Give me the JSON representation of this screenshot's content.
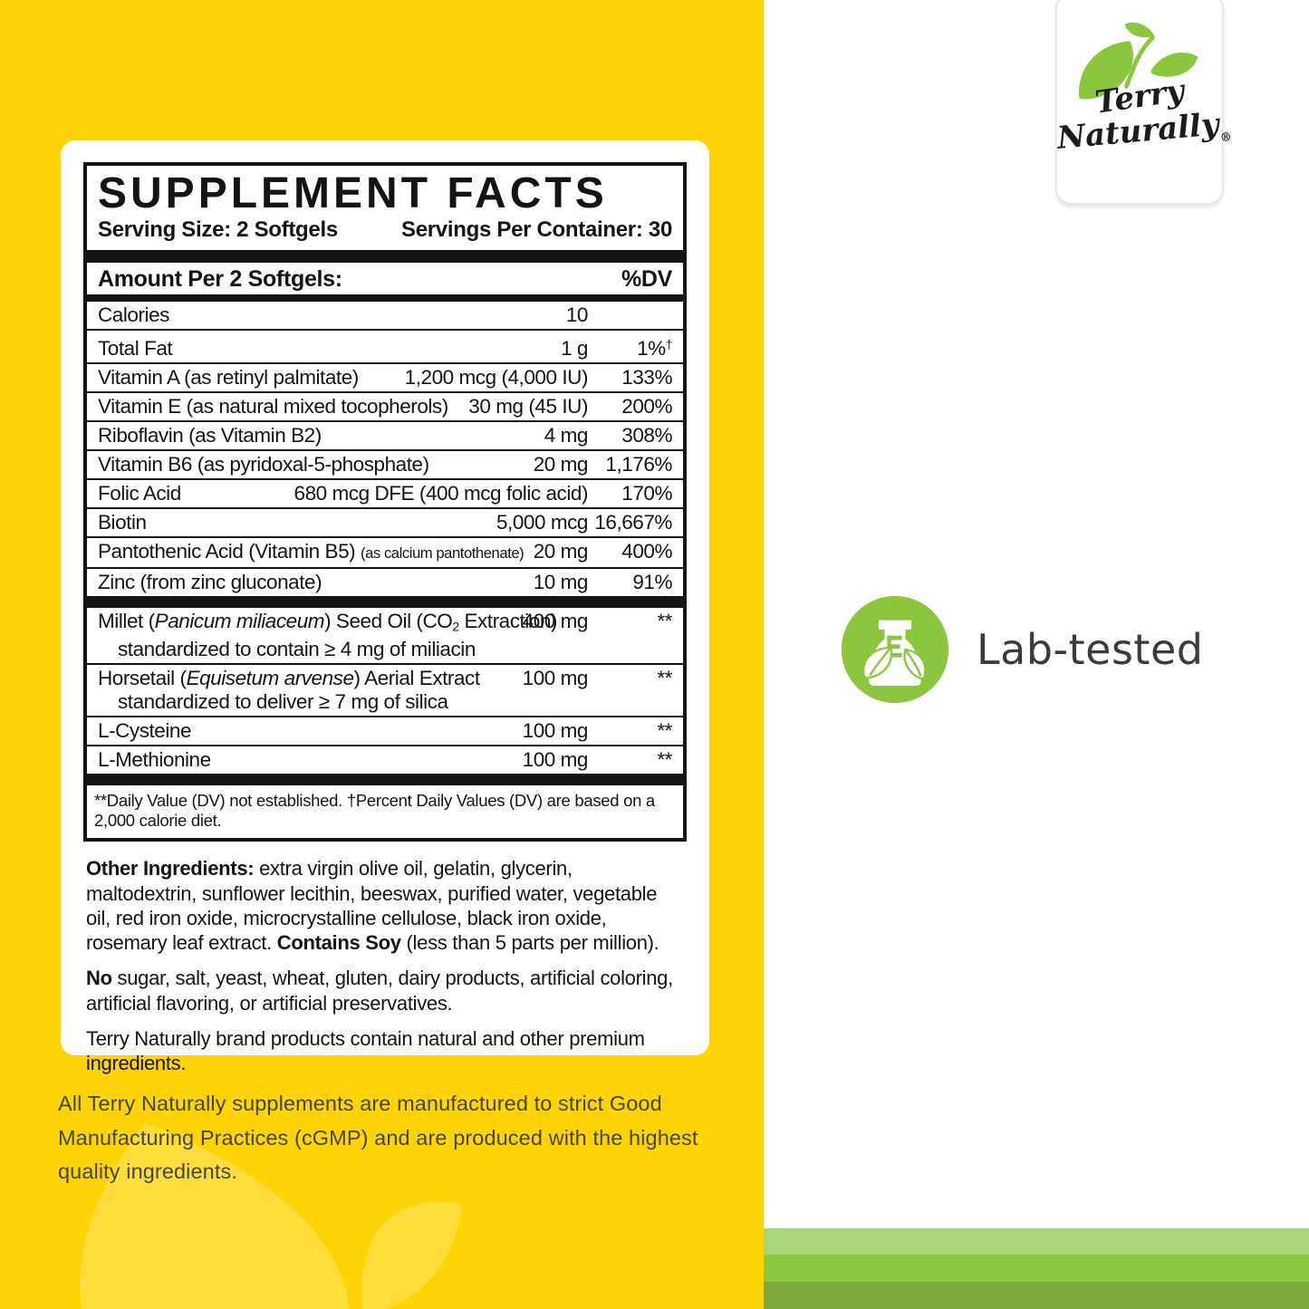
{
  "colors": {
    "yellow": "#FFD405",
    "label_ink": "#141414",
    "brand_green": "#8CC63F",
    "stripe_light": "#A9D478",
    "stripe_mid": "#8DC63F",
    "stripe_dark": "#7EA83C",
    "bottom_note_text": "#474738",
    "badge_text": "#3B3B3B"
  },
  "facts": {
    "title": "SUPPLEMENT FACTS",
    "serving_size": "Serving Size: 2 Softgels",
    "servings_per_container": "Servings Per Container: 30",
    "amount_header": "Amount Per 2 Softgels:",
    "dv_header": "%DV",
    "rows": [
      {
        "name": "Calories",
        "amount": "10",
        "dv": ""
      },
      {
        "name": "Total Fat",
        "amount": "1 g",
        "dv": [
          {
            "t": "1%"
          },
          {
            "t": "†",
            "sup": true
          }
        ]
      },
      {
        "name": "Vitamin A (as retinyl palmitate)",
        "amount": "1,200 mcg (4,000 IU)",
        "dv": "133%"
      },
      {
        "name": "Vitamin E (as natural mixed tocopherols)",
        "amount": "30 mg (45 IU)",
        "dv": "200%"
      },
      {
        "name": "Riboflavin (as Vitamin B2)",
        "amount": "4 mg",
        "dv": "308%"
      },
      {
        "name": "Vitamin B6 (as pyridoxal-5-phosphate)",
        "amount": "20 mg",
        "dv": "1,176%"
      },
      {
        "name": "Folic Acid",
        "amount": "680 mcg DFE (400 mcg folic acid)",
        "dv": "170%"
      },
      {
        "name": "Biotin",
        "amount": "5,000 mcg",
        "dv": "16,667%"
      },
      {
        "name": [
          {
            "t": "Pantothenic Acid (Vitamin B5) "
          },
          {
            "t": "(as calcium pantothenate)",
            "sm": true
          }
        ],
        "amount": "20 mg",
        "dv": "400%"
      },
      {
        "name": "Zinc (from zinc gluconate)",
        "amount": "10 mg",
        "dv": "91%"
      }
    ],
    "botanical_rows": [
      {
        "name": [
          {
            "t": "Millet ("
          },
          {
            "t": "Panicum miliaceum",
            "i": true
          },
          {
            "t": ") Seed Oil (CO"
          },
          {
            "t": "2",
            "sub": true
          },
          {
            "t": " Extraction)"
          }
        ],
        "subline": "standardized to contain ≥ 4 mg of miliacin",
        "amount": "400 mg",
        "dv": "**"
      },
      {
        "name": [
          {
            "t": "Horsetail ("
          },
          {
            "t": "Equisetum arvense",
            "i": true
          },
          {
            "t": ") Aerial Extract"
          }
        ],
        "subline": "standardized to deliver ≥ 7 mg of silica",
        "amount": "100 mg",
        "dv": "**"
      },
      {
        "name": "L-Cysteine",
        "amount": "100 mg",
        "dv": "**"
      },
      {
        "name": "L-Methionine",
        "amount": "100 mg",
        "dv": "**"
      }
    ],
    "footnote": "**Daily Value (DV) not established.  †Percent Daily Values (DV) are based on a 2,000 calorie diet."
  },
  "paragraphs": [
    [
      {
        "t": "Other Ingredients:",
        "b": true
      },
      {
        "t": " extra virgin olive oil, gelatin, glycerin, maltodextrin, sunflower lecithin, beeswax, purified water, vegetable oil, red iron oxide, microcrystalline cellulose, black iron oxide, rosemary leaf extract. "
      },
      {
        "t": "Contains Soy",
        "b": true
      },
      {
        "t": " (less than 5 parts per million)."
      }
    ],
    [
      {
        "t": "No",
        "b": true
      },
      {
        "t": " sugar, salt, yeast, wheat, gluten, dairy products, artificial coloring, artificial flavoring, or artificial preservatives."
      }
    ],
    [
      {
        "t": "Terry Naturally brand products contain natural and other premium ingredients."
      }
    ]
  ],
  "bottom_note": "All Terry Naturally supplements are manufactured to strict Good Manufacturing Practices (cGMP) and are produced with the highest quality ingredients.",
  "logo": {
    "line1": "Terry",
    "line2": "Naturally",
    "registered": "®"
  },
  "badge": {
    "label": "Lab-tested"
  }
}
